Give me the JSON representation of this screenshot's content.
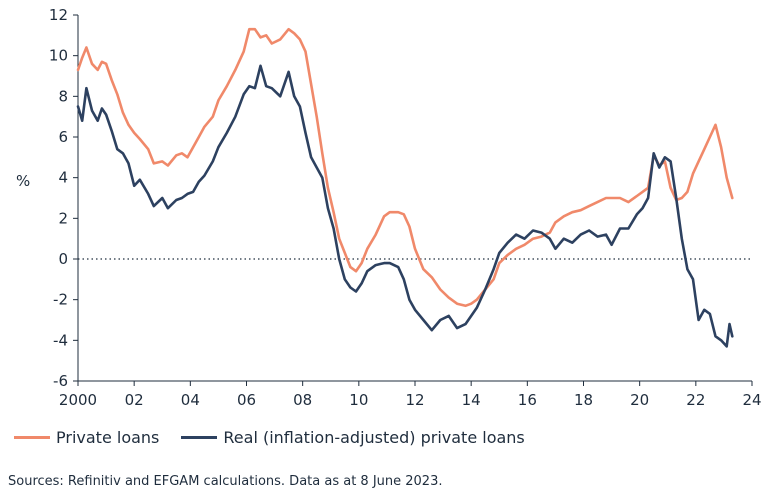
{
  "chart_data": {
    "type": "line",
    "ylabel": "%",
    "ylim": [
      -6,
      12
    ],
    "xlim": [
      2000,
      2024
    ],
    "y_ticks": [
      "12",
      "10",
      "8",
      "6",
      "4",
      "2",
      "0",
      "-2",
      "-4",
      "-6"
    ],
    "x_ticks": [
      "2000",
      "02",
      "04",
      "06",
      "08",
      "10",
      "12",
      "14",
      "16",
      "18",
      "20",
      "22",
      "24"
    ],
    "zero_line": "dotted",
    "grid": false,
    "legend_position": "bottom",
    "series": [
      {
        "name": "Private loans",
        "color": "#f0896a",
        "x": [
          2000.0,
          2000.15,
          2000.3,
          2000.5,
          2000.7,
          2000.85,
          2001.0,
          2001.2,
          2001.4,
          2001.6,
          2001.8,
          2002.0,
          2002.2,
          2002.5,
          2002.7,
          2003.0,
          2003.2,
          2003.5,
          2003.7,
          2003.9,
          2004.1,
          2004.3,
          2004.5,
          2004.8,
          2005.0,
          2005.3,
          2005.6,
          2005.9,
          2006.1,
          2006.3,
          2006.5,
          2006.7,
          2006.9,
          2007.2,
          2007.5,
          2007.7,
          2007.9,
          2008.1,
          2008.3,
          2008.5,
          2008.7,
          2008.9,
          2009.1,
          2009.3,
          2009.5,
          2009.7,
          2009.9,
          2010.1,
          2010.3,
          2010.6,
          2010.9,
          2011.1,
          2011.4,
          2011.6,
          2011.8,
          2012.0,
          2012.3,
          2012.6,
          2012.9,
          2013.2,
          2013.5,
          2013.8,
          2014.0,
          2014.2,
          2014.5,
          2014.8,
          2015.0,
          2015.3,
          2015.6,
          2015.9,
          2016.2,
          2016.5,
          2016.8,
          2017.0,
          2017.3,
          2017.6,
          2017.9,
          2018.2,
          2018.5,
          2018.8,
          2019.0,
          2019.3,
          2019.6,
          2019.9,
          2020.1,
          2020.3,
          2020.5,
          2020.7,
          2020.9,
          2021.1,
          2021.3,
          2021.5,
          2021.7,
          2021.9,
          2022.1,
          2022.3,
          2022.5,
          2022.7,
          2022.9,
          2023.1,
          2023.3
        ],
        "y": [
          9.3,
          9.9,
          10.4,
          9.6,
          9.3,
          9.7,
          9.6,
          8.8,
          8.1,
          7.2,
          6.6,
          6.2,
          5.9,
          5.4,
          4.7,
          4.8,
          4.6,
          5.1,
          5.2,
          5.0,
          5.5,
          6.0,
          6.5,
          7.0,
          7.8,
          8.5,
          9.3,
          10.2,
          11.3,
          11.3,
          10.9,
          11.0,
          10.6,
          10.8,
          11.3,
          11.1,
          10.8,
          10.2,
          8.6,
          7.0,
          5.2,
          3.5,
          2.3,
          1.0,
          0.3,
          -0.4,
          -0.6,
          -0.2,
          0.5,
          1.2,
          2.1,
          2.3,
          2.3,
          2.2,
          1.6,
          0.5,
          -0.5,
          -0.9,
          -1.5,
          -1.9,
          -2.2,
          -2.3,
          -2.2,
          -2.0,
          -1.5,
          -1.0,
          -0.2,
          0.2,
          0.5,
          0.7,
          1.0,
          1.1,
          1.3,
          1.8,
          2.1,
          2.3,
          2.4,
          2.6,
          2.8,
          3.0,
          3.0,
          3.0,
          2.8,
          3.1,
          3.3,
          3.5,
          5.1,
          4.6,
          4.8,
          3.5,
          2.9,
          3.0,
          3.3,
          4.2,
          4.8,
          5.4,
          6.0,
          6.6,
          5.5,
          4.0,
          3.0
        ]
      },
      {
        "name": "Real (inflation-adjusted) private loans",
        "color": "#2d4160",
        "x": [
          2000.0,
          2000.15,
          2000.3,
          2000.5,
          2000.7,
          2000.85,
          2001.0,
          2001.2,
          2001.4,
          2001.6,
          2001.8,
          2002.0,
          2002.2,
          2002.5,
          2002.7,
          2003.0,
          2003.2,
          2003.5,
          2003.7,
          2003.9,
          2004.1,
          2004.3,
          2004.5,
          2004.8,
          2005.0,
          2005.3,
          2005.6,
          2005.9,
          2006.1,
          2006.3,
          2006.5,
          2006.7,
          2006.9,
          2007.2,
          2007.5,
          2007.7,
          2007.9,
          2008.1,
          2008.3,
          2008.5,
          2008.7,
          2008.9,
          2009.1,
          2009.3,
          2009.5,
          2009.7,
          2009.9,
          2010.1,
          2010.3,
          2010.6,
          2010.9,
          2011.1,
          2011.4,
          2011.6,
          2011.8,
          2012.0,
          2012.3,
          2012.6,
          2012.9,
          2013.2,
          2013.5,
          2013.8,
          2014.0,
          2014.2,
          2014.5,
          2014.8,
          2015.0,
          2015.3,
          2015.6,
          2015.9,
          2016.2,
          2016.5,
          2016.8,
          2017.0,
          2017.3,
          2017.6,
          2017.9,
          2018.2,
          2018.5,
          2018.8,
          2019.0,
          2019.3,
          2019.6,
          2019.9,
          2020.1,
          2020.3,
          2020.5,
          2020.7,
          2020.9,
          2021.1,
          2021.3,
          2021.5,
          2021.7,
          2021.9,
          2022.1,
          2022.3,
          2022.5,
          2022.7,
          2022.9,
          2023.1,
          2023.2,
          2023.3
        ],
        "y": [
          7.5,
          6.8,
          8.4,
          7.3,
          6.8,
          7.4,
          7.1,
          6.3,
          5.4,
          5.2,
          4.7,
          3.6,
          3.9,
          3.2,
          2.6,
          3.0,
          2.5,
          2.9,
          3.0,
          3.2,
          3.3,
          3.8,
          4.1,
          4.8,
          5.5,
          6.2,
          7.0,
          8.1,
          8.5,
          8.4,
          9.5,
          8.5,
          8.4,
          8.0,
          9.2,
          8.0,
          7.5,
          6.2,
          5.0,
          4.5,
          4.0,
          2.5,
          1.5,
          0.0,
          -1.0,
          -1.4,
          -1.6,
          -1.2,
          -0.6,
          -0.3,
          -0.2,
          -0.2,
          -0.4,
          -1.0,
          -2.0,
          -2.5,
          -3.0,
          -3.5,
          -3.0,
          -2.8,
          -3.4,
          -3.2,
          -2.8,
          -2.4,
          -1.5,
          -0.5,
          0.3,
          0.8,
          1.2,
          1.0,
          1.4,
          1.3,
          1.0,
          0.5,
          1.0,
          0.8,
          1.2,
          1.4,
          1.1,
          1.2,
          0.7,
          1.5,
          1.5,
          2.2,
          2.5,
          3.0,
          5.2,
          4.5,
          5.0,
          4.8,
          3.0,
          1.0,
          -0.5,
          -1.0,
          -3.0,
          -2.5,
          -2.7,
          -3.8,
          -4.0,
          -4.3,
          -3.2,
          -3.8
        ]
      }
    ]
  },
  "legend": {
    "items": [
      {
        "label": "Private loans",
        "color": "#f0896a"
      },
      {
        "label": "Real (inflation-adjusted) private loans",
        "color": "#2d4160"
      }
    ]
  },
  "footer": {
    "source": "Sources: Refinitiv and EFGAM calculations. Data as at 8 June 2023."
  }
}
